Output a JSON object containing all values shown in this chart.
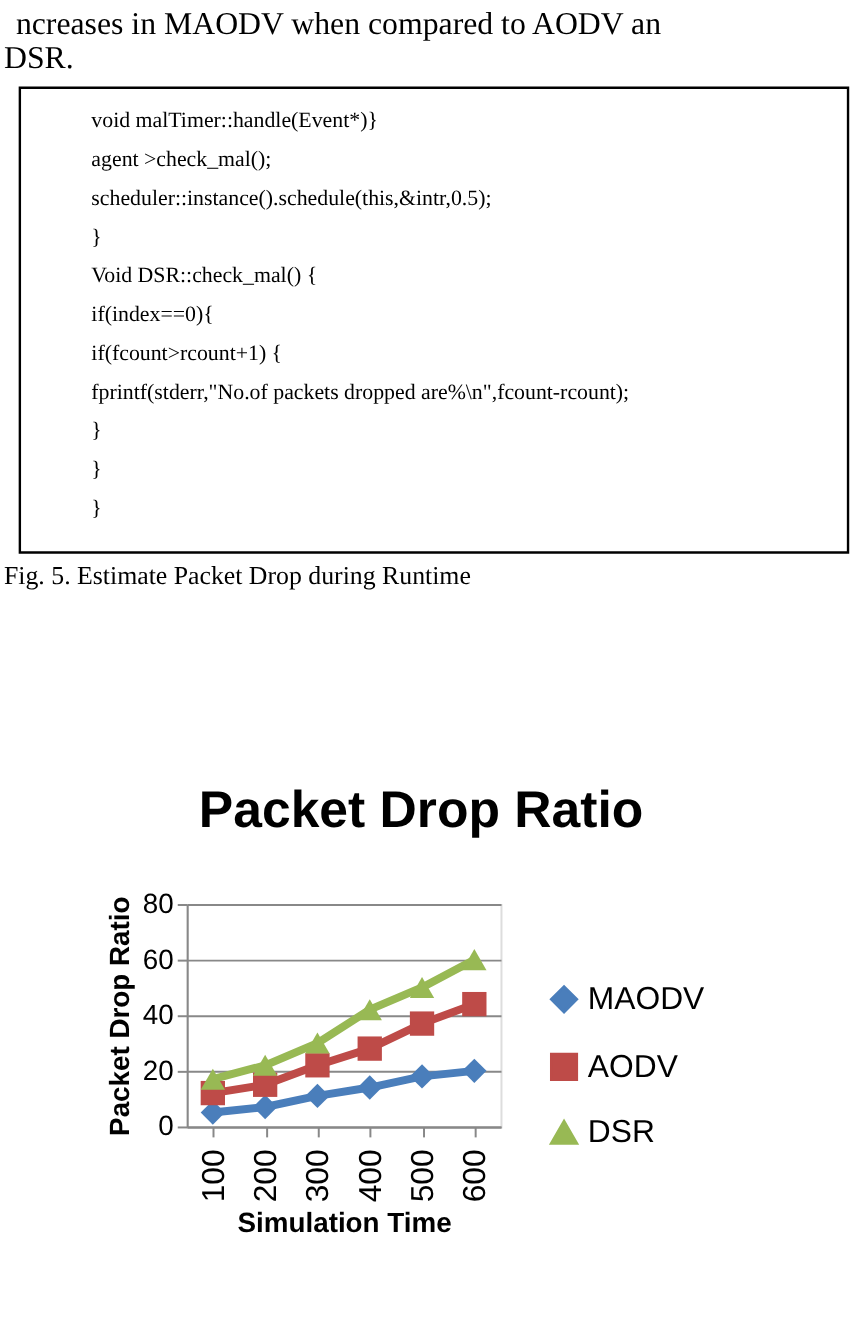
{
  "chart_data": {
    "type": "line",
    "title": "Packet Drop Ratio",
    "xlabel": "Simulation Time",
    "ylabel": "Packet Drop Ratio",
    "categories": [
      "100",
      "200",
      "300",
      "400",
      "500",
      "600"
    ],
    "series": [
      {
        "name": "MAODV",
        "color": "#4a7ebb",
        "marker": "diamond",
        "values": [
          5,
          7,
          11,
          14,
          18,
          20
        ]
      },
      {
        "name": "AODV",
        "color": "#be4b48",
        "marker": "square",
        "values": [
          12,
          15,
          22,
          28,
          37,
          44
        ]
      },
      {
        "name": "DSR",
        "color": "#98b954",
        "marker": "triangle",
        "values": [
          17,
          22,
          30,
          42,
          50,
          60
        ]
      }
    ],
    "ylim": [
      0,
      80
    ],
    "yticks": [
      0,
      20,
      40,
      60,
      80
    ],
    "grid": "y",
    "legend": "right",
    "line_style": "solid",
    "annotations": [
      "ncreases in MAODV when compared to AODV an",
      "DSR.",
      "void malTimer::handle(Event*)}",
      "agent >check_mal();",
      "scheduler::instance().schedule(this,&intr,0.5);",
      "}",
      "Void DSR::check_mal() {",
      "if(index==0){",
      "if(fcount>rcount+1) {",
      "fprintf(stderr,\"No.of packets dropped are%\\n\",fcount-rcount);",
      "}",
      "}",
      "}",
      "Fig. 5. Estimate Packet Drop during Runtime"
    ]
  }
}
